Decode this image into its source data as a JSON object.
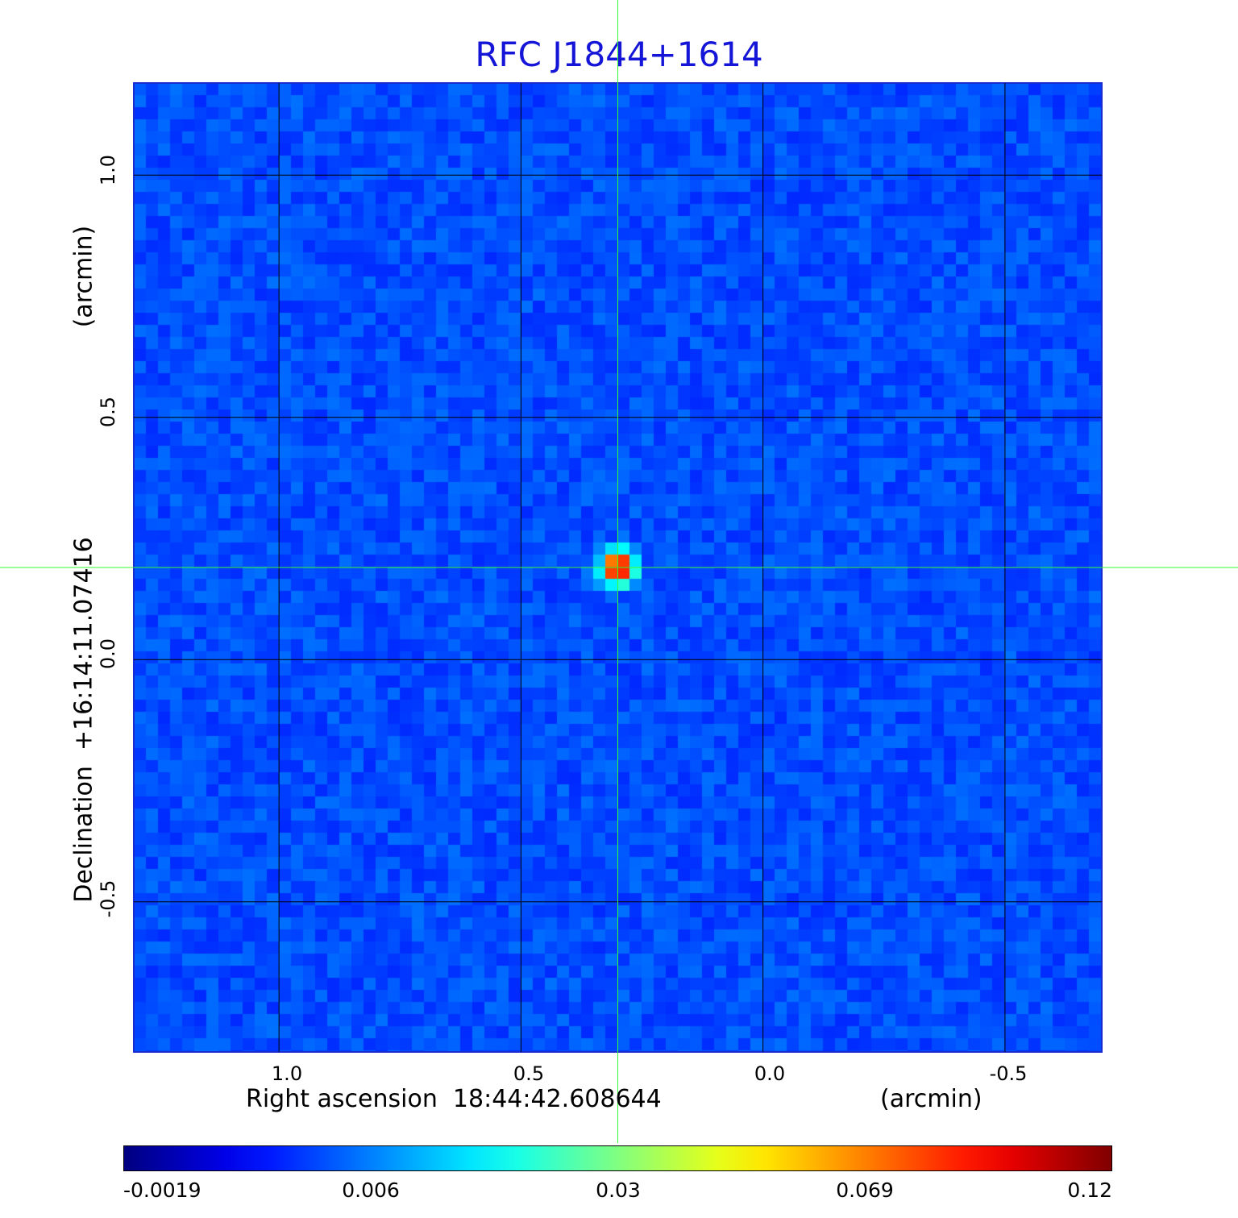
{
  "chart_data": {
    "type": "heatmap",
    "title": "RFC J1844+1614",
    "xlabel": "Right ascension  18:44:42.608644",
    "xunit": "(arcmin)",
    "ylabel": "Declination  +16:14:11.07416",
    "yunit": "(arcmin)",
    "x_ticks": [
      "1.0",
      "0.5",
      "0.0",
      "-0.5"
    ],
    "x_tick_values": [
      1.0,
      0.5,
      0.0,
      -0.5
    ],
    "y_ticks": [
      "1.0",
      "0.5",
      "0.0",
      "-0.5"
    ],
    "y_tick_values": [
      1.0,
      0.5,
      0.0,
      -0.5
    ],
    "xlim": [
      1.3,
      -0.7
    ],
    "ylim": [
      -0.81,
      1.19
    ],
    "grid": true,
    "peak": {
      "x": 0.3,
      "y": 0.19,
      "value": 0.12
    },
    "crosshair": {
      "x": 0.3,
      "y": 0.19
    },
    "colorbar": {
      "ticks": [
        "-0.0019",
        "0.006",
        "0.03",
        "0.069",
        "0.12"
      ],
      "min": -0.0019,
      "max": 0.12,
      "colormap": "jet"
    }
  },
  "colors": {
    "title": "#1515d8",
    "grid": "#000000",
    "crosshair": "#33ff33",
    "background_map": "#1e5cf2"
  }
}
